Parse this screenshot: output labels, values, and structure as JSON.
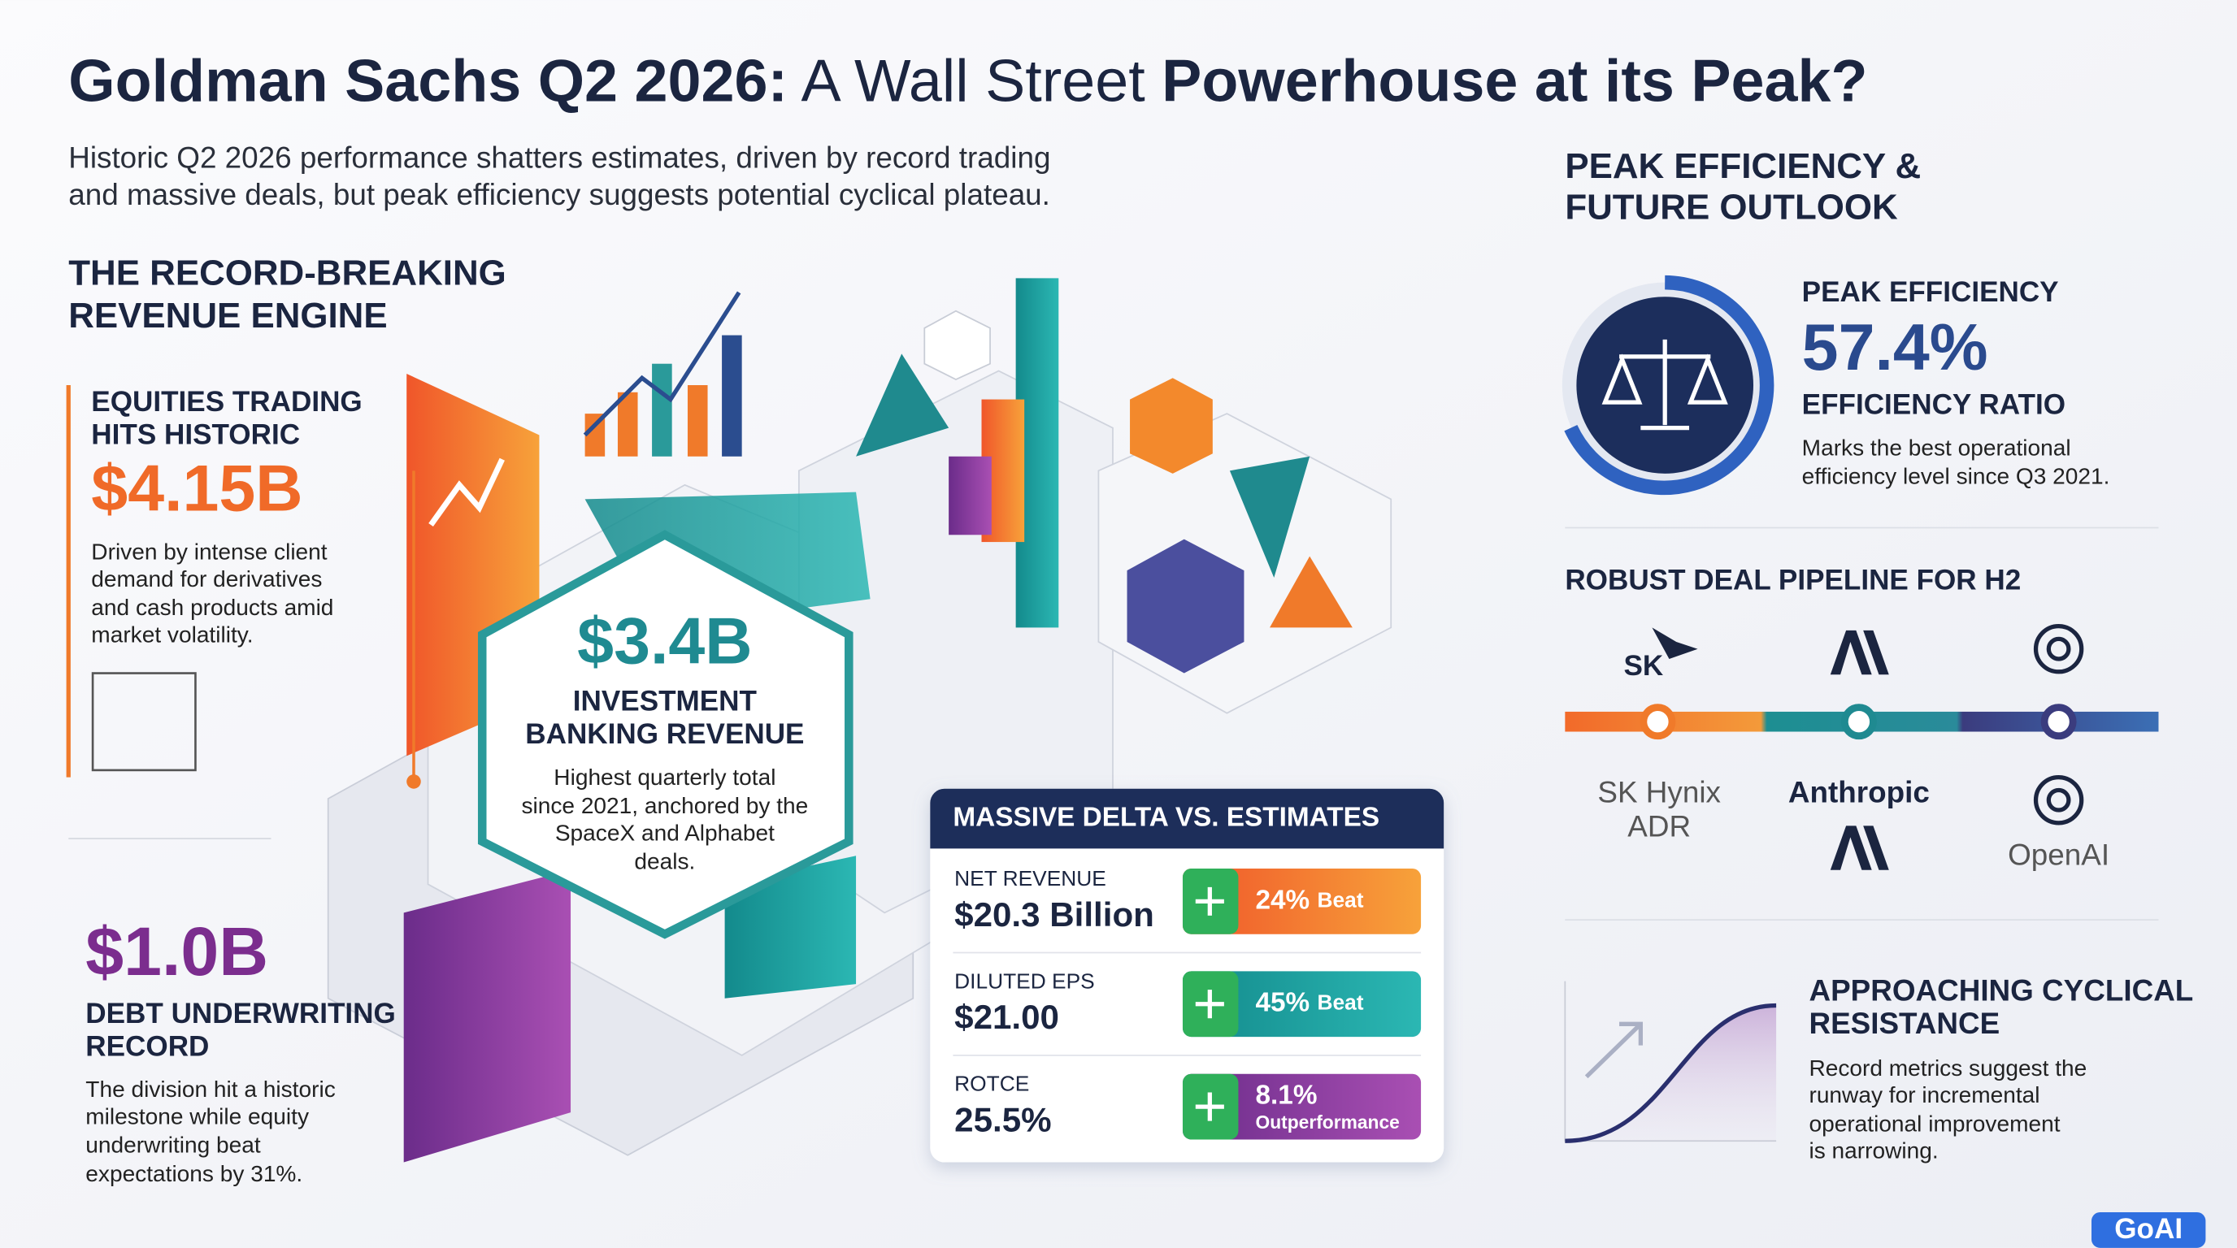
{
  "header": {
    "title": {
      "part1": "Goldman Sachs Q2 2026:",
      "part2": " A Wall Street ",
      "part3": "Powerhouse at its Peak?"
    },
    "subtitle": [
      "Historic Q2 2026 performance shatters estimates, driven by record trading",
      "and massive deals, but peak efficiency suggests potential cyclical plateau."
    ]
  },
  "revenue_engine": {
    "heading": [
      "THE RECORD-BREAKING",
      "REVENUE ENGINE"
    ],
    "equities": {
      "heading": [
        "EQUITIES TRADING",
        "HITS HISTORIC"
      ],
      "value": "$4.15B",
      "description": [
        "Driven by intense client",
        "demand for derivatives",
        "and cash products amid",
        "market volatility."
      ]
    },
    "investment_banking": {
      "value": "$3.4B",
      "heading": [
        "INVESTMENT",
        "BANKING REVENUE"
      ],
      "description": [
        "Highest quarterly total",
        "since 2021, anchored by the",
        "SpaceX and Alphabet",
        "deals."
      ]
    },
    "debt": {
      "value": "$1.0B",
      "heading": [
        "DEBT UNDERWRITING",
        "RECORD"
      ],
      "description": [
        "The division hit a historic",
        "milestone while equity",
        "underwriting beat",
        "expectations by 31%."
      ]
    }
  },
  "delta_card": {
    "title": "MASSIVE DELTA VS. ESTIMATES",
    "rows": [
      {
        "label": "NET REVENUE",
        "value": "$20.3 Billion",
        "badge": "24%",
        "badge_word": "Beat"
      },
      {
        "label": "DILUTED EPS",
        "value": "$21.00",
        "badge": "45%",
        "badge_word": "Beat"
      },
      {
        "label": "ROTCE",
        "value": "25.5%",
        "badge": "8.1%",
        "badge_word": "Outperformance"
      }
    ]
  },
  "outlook": {
    "heading": [
      "PEAK EFFICIENCY &",
      "FUTURE OUTLOOK"
    ],
    "efficiency": {
      "label": "PEAK EFFICIENCY",
      "value": "57.4%",
      "sublabel": "EFFICIENCY RATIO",
      "description": [
        "Marks the best operational",
        "efficiency level since Q3 2021."
      ]
    },
    "pipeline": {
      "heading": "ROBUST DEAL PIPELINE FOR H2",
      "sk_logo": "SK",
      "names": [
        [
          "SK Hynix",
          "ADR"
        ],
        [
          "Anthropic"
        ],
        [
          "OpenAI"
        ]
      ]
    },
    "resistance": {
      "heading": [
        "APPROACHING CYCLICAL",
        "RESISTANCE"
      ],
      "description": [
        "Record metrics suggest the",
        "runway for incremental",
        "operational improvement",
        "is narrowing."
      ]
    }
  },
  "watermark": "GoAI"
}
